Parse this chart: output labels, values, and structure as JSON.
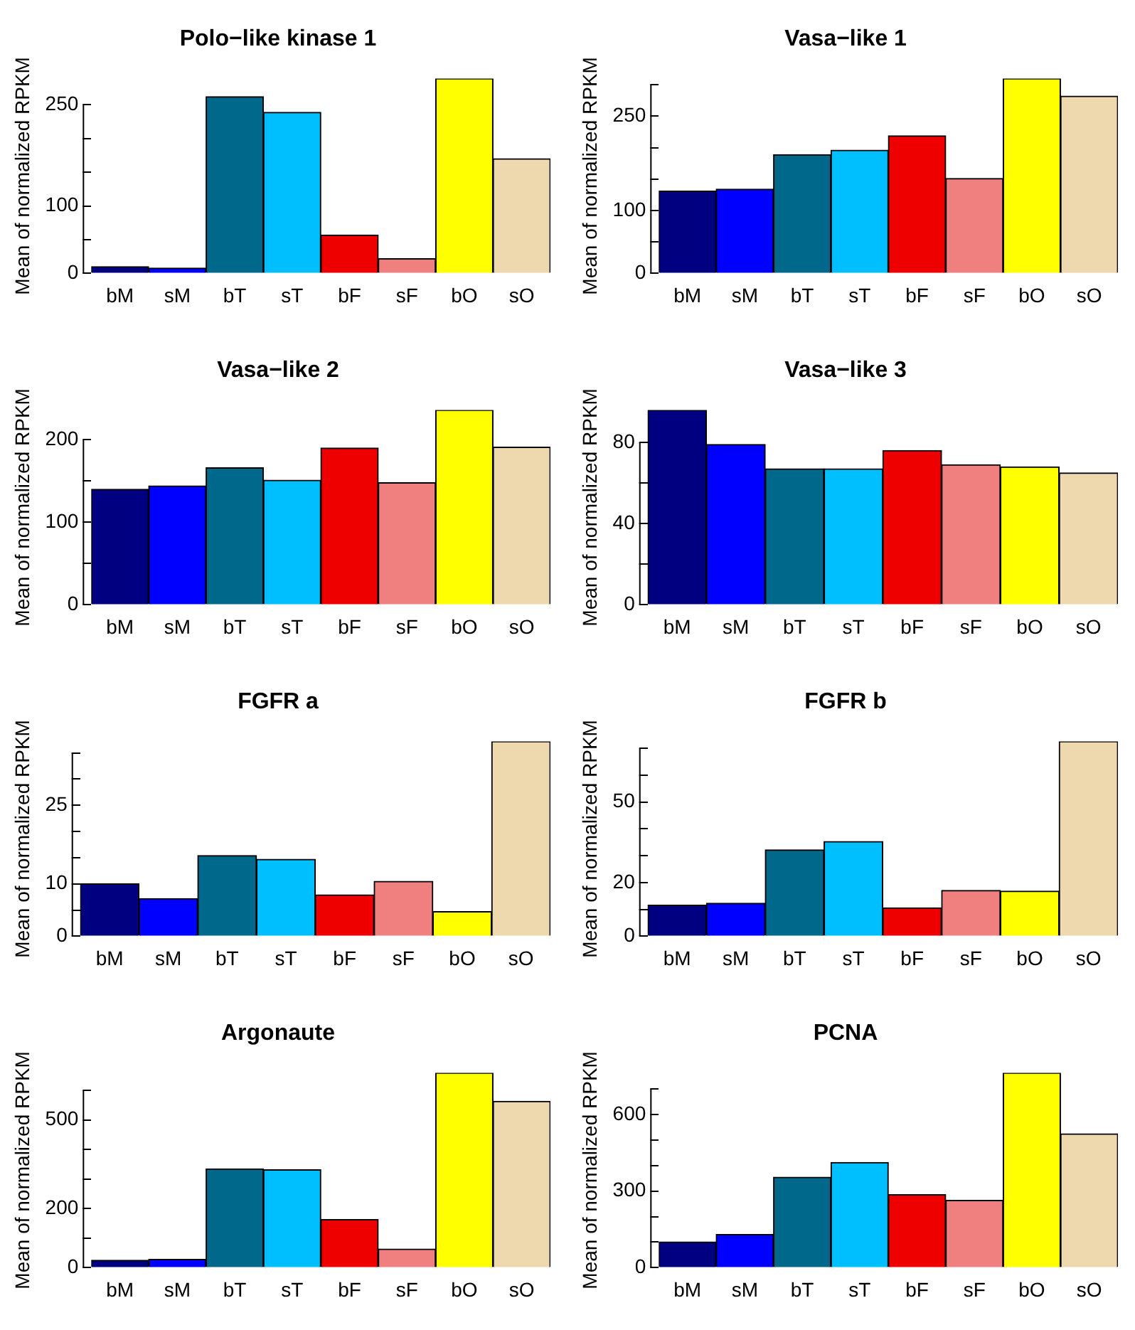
{
  "chart_data": [
    {
      "type": "bar",
      "title": "Polo−like kinase 1",
      "ylabel": "Mean of normalized RPKM",
      "categories": [
        "bM",
        "sM",
        "bT",
        "sT",
        "bF",
        "sF",
        "bO",
        "sO"
      ],
      "values": [
        10,
        8,
        262,
        239,
        57,
        22,
        289,
        170
      ],
      "colors": [
        "#000080",
        "#0000ff",
        "#00688b",
        "#00bfff",
        "#ee0000",
        "#f08080",
        "#ffff00",
        "#eed8ae"
      ],
      "ylim": [
        0,
        289
      ],
      "yticks": [
        0,
        {
          "value": 50,
          "label": null
        },
        100,
        {
          "value": 150,
          "label": null
        },
        {
          "value": 200,
          "label": null
        },
        250
      ],
      "grid": false,
      "legend": false
    },
    {
      "type": "bar",
      "title": "Vasa−like 1",
      "ylabel": "Mean of normalized RPKM",
      "categories": [
        "bM",
        "sM",
        "bT",
        "sT",
        "bF",
        "sF",
        "bO",
        "sO"
      ],
      "values": [
        131,
        134,
        189,
        196,
        219,
        151,
        310,
        282
      ],
      "colors": [
        "#000080",
        "#0000ff",
        "#00688b",
        "#00bfff",
        "#ee0000",
        "#f08080",
        "#ffff00",
        "#eed8ae"
      ],
      "ylim": [
        0,
        310
      ],
      "yticks": [
        0,
        {
          "value": 50,
          "label": null
        },
        100,
        {
          "value": 150,
          "label": null
        },
        {
          "value": 200,
          "label": null
        },
        250,
        {
          "value": 300,
          "label": null
        }
      ],
      "grid": false,
      "legend": false
    },
    {
      "type": "bar",
      "title": "Vasa−like 2",
      "ylabel": "Mean of normalized RPKM",
      "categories": [
        "bM",
        "sM",
        "bT",
        "sT",
        "bF",
        "sF",
        "bO",
        "sO"
      ],
      "values": [
        140,
        144,
        166,
        151,
        190,
        148,
        236,
        191
      ],
      "colors": [
        "#000080",
        "#0000ff",
        "#00688b",
        "#00bfff",
        "#ee0000",
        "#f08080",
        "#ffff00",
        "#eed8ae"
      ],
      "ylim": [
        0,
        236
      ],
      "yticks": [
        0,
        {
          "value": 50,
          "label": null
        },
        100,
        {
          "value": 150,
          "label": null
        },
        200
      ],
      "grid": false,
      "legend": false
    },
    {
      "type": "bar",
      "title": "Vasa−like 3",
      "ylabel": "Mean of normalized RPKM",
      "categories": [
        "bM",
        "sM",
        "bT",
        "sT",
        "bF",
        "sF",
        "bO",
        "sO"
      ],
      "values": [
        96,
        79,
        67,
        67,
        76,
        69,
        68,
        65
      ],
      "colors": [
        "#000080",
        "#0000ff",
        "#00688b",
        "#00bfff",
        "#ee0000",
        "#f08080",
        "#ffff00",
        "#eed8ae"
      ],
      "ylim": [
        0,
        96
      ],
      "yticks": [
        0,
        {
          "value": 20,
          "label": null
        },
        40,
        {
          "value": 60,
          "label": null
        },
        80
      ],
      "grid": false,
      "legend": false
    },
    {
      "type": "bar",
      "title": "FGFR a",
      "ylabel": "Mean of normalized RPKM",
      "categories": [
        "bM",
        "sM",
        "bT",
        "sT",
        "bF",
        "sF",
        "bO",
        "sO"
      ],
      "values": [
        10,
        7.2,
        15.4,
        14.7,
        7.9,
        10.5,
        4.7,
        37.2
      ],
      "colors": [
        "#000080",
        "#0000ff",
        "#00688b",
        "#00bfff",
        "#ee0000",
        "#f08080",
        "#ffff00",
        "#eed8ae"
      ],
      "ylim": [
        0,
        37.2
      ],
      "yticks": [
        0,
        {
          "value": 5,
          "label": null
        },
        10,
        {
          "value": 15,
          "label": null
        },
        {
          "value": 20,
          "label": null
        },
        25,
        {
          "value": 30,
          "label": null
        },
        {
          "value": 35,
          "label": null
        }
      ],
      "grid": false,
      "legend": false
    },
    {
      "type": "bar",
      "title": "FGFR b",
      "ylabel": "Mean of normalized RPKM",
      "categories": [
        "bM",
        "sM",
        "bT",
        "sT",
        "bF",
        "sF",
        "bO",
        "sO"
      ],
      "values": [
        11.6,
        12.3,
        32.2,
        35.3,
        10.6,
        17.1,
        16.8,
        72.6
      ],
      "colors": [
        "#000080",
        "#0000ff",
        "#00688b",
        "#00bfff",
        "#ee0000",
        "#f08080",
        "#ffff00",
        "#eed8ae"
      ],
      "ylim": [
        0,
        72.6
      ],
      "yticks": [
        0,
        {
          "value": 10,
          "label": null
        },
        20,
        {
          "value": 30,
          "label": null
        },
        {
          "value": 40,
          "label": null
        },
        50,
        {
          "value": 60,
          "label": null
        },
        {
          "value": 70,
          "label": null
        }
      ],
      "grid": false,
      "legend": false
    },
    {
      "type": "bar",
      "title": "Argonaute",
      "ylabel": "Mean of normalized RPKM",
      "categories": [
        "bM",
        "sM",
        "bT",
        "sT",
        "bF",
        "sF",
        "bO",
        "sO"
      ],
      "values": [
        25,
        28,
        334,
        331,
        163,
        63,
        659,
        563
      ],
      "colors": [
        "#000080",
        "#0000ff",
        "#00688b",
        "#00bfff",
        "#ee0000",
        "#f08080",
        "#ffff00",
        "#eed8ae"
      ],
      "ylim": [
        0,
        659
      ],
      "yticks": [
        0,
        {
          "value": 100,
          "label": null
        },
        200,
        {
          "value": 300,
          "label": null
        },
        {
          "value": 400,
          "label": null
        },
        500,
        {
          "value": 600,
          "label": null
        }
      ],
      "grid": false,
      "legend": false
    },
    {
      "type": "bar",
      "title": "PCNA",
      "ylabel": "Mean of normalized RPKM",
      "categories": [
        "bM",
        "sM",
        "bT",
        "sT",
        "bF",
        "sF",
        "bO",
        "sO"
      ],
      "values": [
        101,
        130,
        354,
        412,
        286,
        264,
        763,
        524
      ],
      "colors": [
        "#000080",
        "#0000ff",
        "#00688b",
        "#00bfff",
        "#ee0000",
        "#f08080",
        "#ffff00",
        "#eed8ae"
      ],
      "ylim": [
        0,
        763
      ],
      "yticks": [
        0,
        {
          "value": 100,
          "label": null
        },
        {
          "value": 200,
          "label": null
        },
        300,
        {
          "value": 400,
          "label": null
        },
        {
          "value": 500,
          "label": null
        },
        600,
        {
          "value": 700,
          "label": null
        }
      ],
      "grid": false,
      "legend": false
    }
  ]
}
